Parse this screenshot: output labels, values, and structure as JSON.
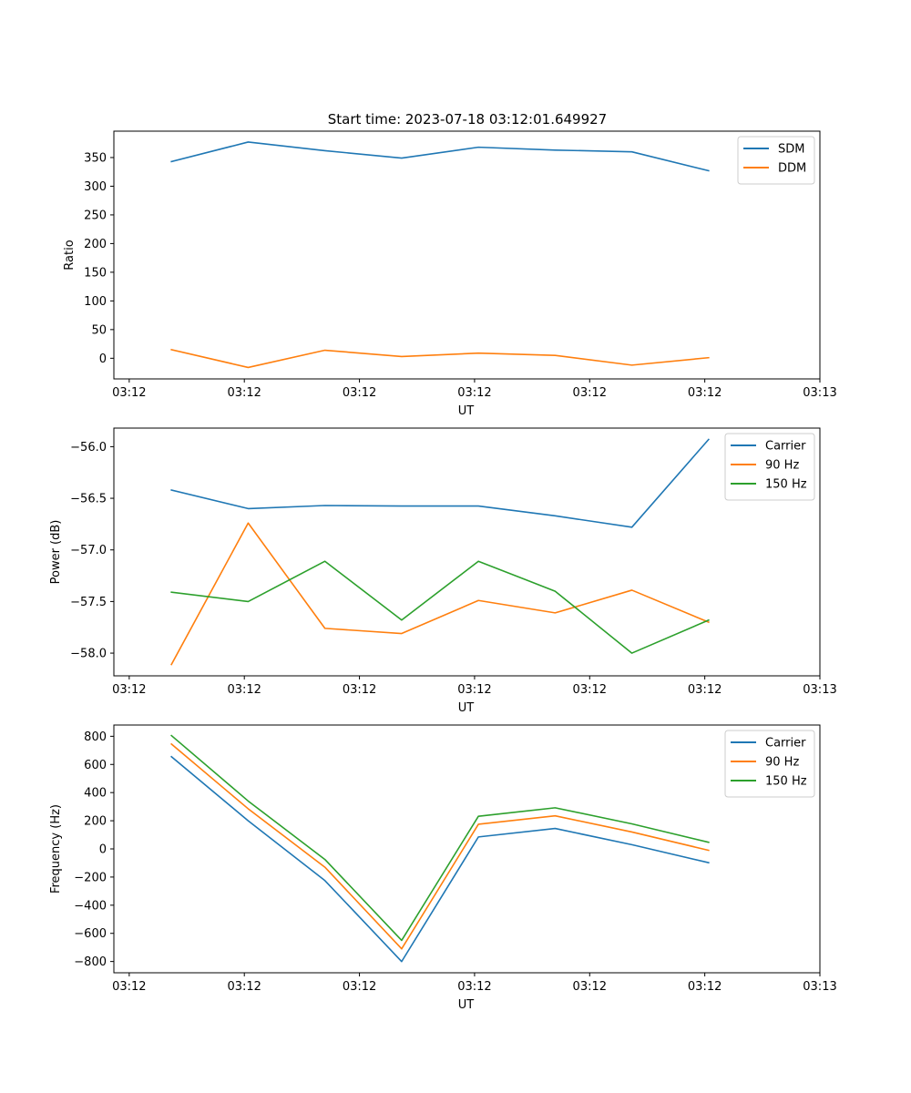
{
  "figure_title": "Start time: 2023-07-18 03:12:01.649927",
  "colors": {
    "c0": "#1f77b4",
    "c1": "#ff7f0e",
    "c2": "#2ca02c"
  },
  "chart_data": [
    {
      "type": "line",
      "title": "Start time: 2023-07-18 03:12:01.649927",
      "xlabel": "UT",
      "ylabel": "Ratio",
      "x": [
        1,
        2,
        3,
        4,
        5,
        6,
        7,
        8
      ],
      "xlim": [
        0.25,
        9.45
      ],
      "x_ticks": [
        0.45,
        1.95,
        3.45,
        4.95,
        6.45,
        7.95,
        9.45
      ],
      "x_tick_labels": [
        "03:12",
        "03:12",
        "03:12",
        "03:12",
        "03:12",
        "03:12",
        "03:13"
      ],
      "ylim": [
        -36,
        396
      ],
      "y_ticks": [
        0,
        50,
        100,
        150,
        200,
        250,
        300,
        350
      ],
      "y_tick_labels": [
        "0",
        "50",
        "100",
        "150",
        "200",
        "250",
        "300",
        "350"
      ],
      "legend_position": "upper right",
      "series": [
        {
          "name": "SDM",
          "color": "#1f77b4",
          "values": [
            343,
            377,
            362,
            349,
            368,
            363,
            360,
            327
          ]
        },
        {
          "name": "DDM",
          "color": "#ff7f0e",
          "values": [
            15,
            -16,
            14,
            3,
            9,
            5,
            -12,
            1
          ]
        }
      ]
    },
    {
      "type": "line",
      "title": "",
      "xlabel": "UT",
      "ylabel": "Power (dB)",
      "x": [
        1,
        2,
        3,
        4,
        5,
        6,
        7,
        8
      ],
      "xlim": [
        0.25,
        9.45
      ],
      "x_ticks": [
        0.45,
        1.95,
        3.45,
        4.95,
        6.45,
        7.95,
        9.45
      ],
      "x_tick_labels": [
        "03:12",
        "03:12",
        "03:12",
        "03:12",
        "03:12",
        "03:12",
        "03:13"
      ],
      "ylim": [
        -58.22,
        -55.82
      ],
      "y_ticks": [
        -58.0,
        -57.5,
        -57.0,
        -56.5,
        -56.0
      ],
      "y_tick_labels": [
        "−58.0",
        "−57.5",
        "−57.0",
        "−56.5",
        "−56.0"
      ],
      "legend_position": "upper right",
      "series": [
        {
          "name": "Carrier",
          "color": "#1f77b4",
          "values": [
            -56.42,
            -56.6,
            -56.57,
            -56.575,
            -56.575,
            -56.67,
            -56.78,
            -55.93
          ]
        },
        {
          "name": "90 Hz",
          "color": "#ff7f0e",
          "values": [
            -58.11,
            -56.74,
            -57.76,
            -57.81,
            -57.49,
            -57.61,
            -57.39,
            -57.7
          ]
        },
        {
          "name": "150 Hz",
          "color": "#2ca02c",
          "values": [
            -57.41,
            -57.5,
            -57.11,
            -57.68,
            -57.11,
            -57.4,
            -58.0,
            -57.68
          ]
        }
      ]
    },
    {
      "type": "line",
      "title": "",
      "xlabel": "UT",
      "ylabel": "Frequency (Hz)",
      "x": [
        1,
        2,
        3,
        4,
        5,
        6,
        7,
        8
      ],
      "xlim": [
        0.25,
        9.45
      ],
      "x_ticks": [
        0.45,
        1.95,
        3.45,
        4.95,
        6.45,
        7.95,
        9.45
      ],
      "x_tick_labels": [
        "03:12",
        "03:12",
        "03:12",
        "03:12",
        "03:12",
        "03:12",
        "03:13"
      ],
      "ylim": [
        -880,
        880
      ],
      "y_ticks": [
        -800,
        -600,
        -400,
        -200,
        0,
        200,
        400,
        600,
        800
      ],
      "y_tick_labels": [
        "−800",
        "−600",
        "−400",
        "−200",
        "0",
        "200",
        "400",
        "600",
        "800"
      ],
      "legend_position": "upper right",
      "series": [
        {
          "name": "Carrier",
          "color": "#1f77b4",
          "values": [
            655,
            200,
            -225,
            -800,
            85,
            145,
            30,
            -98
          ]
        },
        {
          "name": "90 Hz",
          "color": "#ff7f0e",
          "values": [
            745,
            285,
            -130,
            -710,
            175,
            235,
            120,
            -10
          ]
        },
        {
          "name": "150 Hz",
          "color": "#2ca02c",
          "values": [
            805,
            340,
            -75,
            -650,
            232,
            292,
            178,
            47
          ]
        }
      ]
    }
  ]
}
